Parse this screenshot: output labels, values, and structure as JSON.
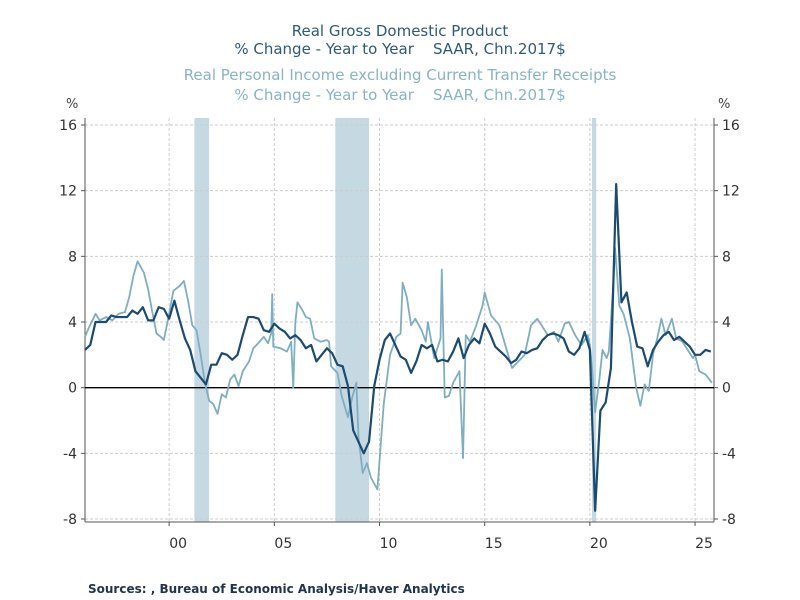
{
  "chart_data": {
    "type": "line",
    "title_lines": [
      {
        "text": "Real Gross Domestic Product",
        "series": 0
      },
      {
        "text": "% Change - Year to Year    SAAR, Chn.2017$",
        "series": 0
      },
      {
        "text": "Real Personal Income excluding Current Transfer Receipts",
        "series": 1
      },
      {
        "text": "% Change - Year to Year    SAAR, Chn.2017$",
        "series": 1
      }
    ],
    "ylabel_left": "%",
    "ylabel_right": "%",
    "ylim": [
      -8,
      16
    ],
    "yticks": [
      -8,
      -4,
      0,
      4,
      8,
      12,
      16
    ],
    "ytick_labels": [
      "-8",
      "-4",
      "0",
      "4",
      "8",
      "12",
      "16"
    ],
    "xlim": [
      1996,
      2025.9
    ],
    "xticks": [
      2000,
      2005,
      2010,
      2015,
      2020,
      2025
    ],
    "xtick_labels": [
      "00",
      "05",
      "10",
      "15",
      "20",
      "25"
    ],
    "grid": true,
    "zero_line": true,
    "recessions": [
      [
        2001.2,
        2001.9
      ],
      [
        2007.9,
        2009.5
      ],
      [
        2020.1,
        2020.3
      ]
    ],
    "colors": {
      "gdp": "#1b4a72",
      "income": "#7eaec2",
      "recession": "#c5d9e3",
      "grid": "#cccccc"
    },
    "series": [
      {
        "name": "Real Gross Domestic Product",
        "color": "#1b4a72",
        "start": 1996,
        "frequency": "quarterly",
        "values": [
          2.3,
          2.6,
          4.0,
          4.0,
          4.0,
          4.4,
          4.3,
          4.3,
          4.3,
          4.7,
          4.5,
          4.9,
          4.1,
          4.1,
          4.9,
          4.8,
          4.2,
          5.3,
          4.1,
          3.0,
          2.3,
          1.0,
          0.6,
          0.2,
          1.4,
          1.4,
          2.1,
          2.0,
          1.7,
          2.0,
          3.2,
          4.3,
          4.3,
          4.2,
          3.5,
          3.4,
          3.9,
          3.6,
          3.4,
          3.0,
          3.2,
          2.9,
          2.4,
          2.6,
          1.6,
          2.0,
          2.4,
          2.1,
          1.4,
          1.3,
          0.1,
          -2.6,
          -3.3,
          -4.0,
          -3.3,
          0.1,
          1.7,
          2.9,
          3.3,
          2.6,
          1.9,
          1.7,
          0.9,
          1.6,
          2.6,
          2.4,
          2.6,
          1.6,
          1.7,
          1.6,
          2.2,
          3.0,
          1.8,
          2.6,
          3.0,
          2.7,
          3.9,
          3.3,
          2.5,
          2.2,
          1.9,
          1.5,
          1.7,
          2.2,
          2.1,
          2.3,
          2.4,
          2.9,
          3.2,
          3.3,
          3.2,
          3.0,
          2.2,
          2.0,
          2.4,
          3.4,
          2.3,
          -7.5,
          -1.4,
          -0.9,
          1.2,
          12.4,
          5.2,
          5.8,
          4.0,
          2.5,
          2.4,
          1.3,
          2.3,
          2.8,
          3.2,
          3.4,
          2.9,
          3.1,
          2.8,
          2.5,
          2.0,
          2.0,
          2.3,
          2.2
        ]
      },
      {
        "name": "Real Personal Income excluding Current Transfer Receipts",
        "color": "#7eaec2",
        "points": [
          [
            1996.0,
            3.1
          ],
          [
            1996.2,
            3.7
          ],
          [
            1996.5,
            4.5
          ],
          [
            1996.7,
            4.1
          ],
          [
            1997.0,
            4.3
          ],
          [
            1997.3,
            4.1
          ],
          [
            1997.6,
            4.5
          ],
          [
            1997.9,
            4.6
          ],
          [
            1998.1,
            5.5
          ],
          [
            1998.3,
            6.8
          ],
          [
            1998.5,
            7.7
          ],
          [
            1998.8,
            7.0
          ],
          [
            1999.0,
            6.0
          ],
          [
            1999.2,
            4.6
          ],
          [
            1999.4,
            3.3
          ],
          [
            1999.6,
            3.1
          ],
          [
            1999.75,
            2.9
          ],
          [
            2000.0,
            4.5
          ],
          [
            2000.2,
            5.9
          ],
          [
            2000.5,
            6.2
          ],
          [
            2000.7,
            6.5
          ],
          [
            2000.9,
            5.3
          ],
          [
            2001.1,
            3.8
          ],
          [
            2001.3,
            3.5
          ],
          [
            2001.5,
            2.0
          ],
          [
            2001.7,
            0.3
          ],
          [
            2001.9,
            -0.8
          ],
          [
            2002.1,
            -1.0
          ],
          [
            2002.3,
            -1.6
          ],
          [
            2002.5,
            -0.4
          ],
          [
            2002.7,
            -0.6
          ],
          [
            2002.9,
            0.5
          ],
          [
            2003.1,
            0.8
          ],
          [
            2003.3,
            0.1
          ],
          [
            2003.5,
            1.0
          ],
          [
            2003.8,
            1.6
          ],
          [
            2004.0,
            2.4
          ],
          [
            2004.3,
            2.8
          ],
          [
            2004.5,
            3.1
          ],
          [
            2004.7,
            2.7
          ],
          [
            2004.85,
            3.3
          ],
          [
            2004.9,
            5.7
          ],
          [
            2004.95,
            2.5
          ],
          [
            2005.3,
            2.4
          ],
          [
            2005.6,
            2.2
          ],
          [
            2005.8,
            2.8
          ],
          [
            2005.9,
            0.0
          ],
          [
            2006.0,
            4.0
          ],
          [
            2006.1,
            5.2
          ],
          [
            2006.3,
            4.8
          ],
          [
            2006.5,
            4.3
          ],
          [
            2006.7,
            4.2
          ],
          [
            2006.9,
            3.0
          ],
          [
            2007.2,
            2.8
          ],
          [
            2007.5,
            2.9
          ],
          [
            2007.6,
            2.8
          ],
          [
            2007.7,
            1.3
          ],
          [
            2008.0,
            0.9
          ],
          [
            2008.2,
            -0.5
          ],
          [
            2008.5,
            -1.8
          ],
          [
            2008.7,
            -0.6
          ],
          [
            2008.9,
            0.3
          ],
          [
            2009.0,
            -3.0
          ],
          [
            2009.2,
            -5.2
          ],
          [
            2009.4,
            -4.6
          ],
          [
            2009.6,
            -5.5
          ],
          [
            2009.9,
            -6.2
          ],
          [
            2010.2,
            -1.0
          ],
          [
            2010.5,
            2.0
          ],
          [
            2010.8,
            3.1
          ],
          [
            2011.0,
            3.3
          ],
          [
            2011.1,
            6.4
          ],
          [
            2011.3,
            5.5
          ],
          [
            2011.5,
            3.8
          ],
          [
            2011.7,
            4.2
          ],
          [
            2012.0,
            3.5
          ],
          [
            2012.2,
            2.8
          ],
          [
            2012.3,
            4.0
          ],
          [
            2012.6,
            1.8
          ],
          [
            2012.9,
            3.0
          ],
          [
            2012.96,
            7.2
          ],
          [
            2013.1,
            -0.6
          ],
          [
            2013.3,
            -0.5
          ],
          [
            2013.5,
            0.3
          ],
          [
            2013.8,
            1.0
          ],
          [
            2013.97,
            -4.3
          ],
          [
            2014.1,
            3.2
          ],
          [
            2014.3,
            2.8
          ],
          [
            2014.6,
            3.8
          ],
          [
            2014.9,
            5.0
          ],
          [
            2015.0,
            5.8
          ],
          [
            2015.3,
            4.4
          ],
          [
            2015.7,
            3.8
          ],
          [
            2016.0,
            2.5
          ],
          [
            2016.3,
            1.2
          ],
          [
            2016.6,
            1.6
          ],
          [
            2016.9,
            2.0
          ],
          [
            2017.2,
            3.8
          ],
          [
            2017.5,
            4.2
          ],
          [
            2017.7,
            3.8
          ],
          [
            2018.0,
            3.2
          ],
          [
            2018.3,
            3.4
          ],
          [
            2018.5,
            2.8
          ],
          [
            2018.8,
            3.9
          ],
          [
            2019.0,
            4.0
          ],
          [
            2019.3,
            3.2
          ],
          [
            2019.6,
            2.6
          ],
          [
            2019.9,
            3.2
          ],
          [
            2020.0,
            2.6
          ],
          [
            2020.1,
            1.2
          ],
          [
            2020.25,
            -1.5
          ],
          [
            2020.45,
            0.5
          ],
          [
            2020.6,
            2.3
          ],
          [
            2020.8,
            1.8
          ],
          [
            2020.9,
            2.2
          ],
          [
            2021.1,
            6.0
          ],
          [
            2021.2,
            8.5
          ],
          [
            2021.4,
            5.0
          ],
          [
            2021.6,
            4.5
          ],
          [
            2021.9,
            3.0
          ],
          [
            2022.2,
            0.0
          ],
          [
            2022.4,
            -1.1
          ],
          [
            2022.6,
            0.2
          ],
          [
            2022.8,
            -0.2
          ],
          [
            2023.0,
            2.0
          ],
          [
            2023.2,
            3.0
          ],
          [
            2023.4,
            4.2
          ],
          [
            2023.6,
            3.2
          ],
          [
            2023.9,
            4.2
          ],
          [
            2024.1,
            3.0
          ],
          [
            2024.4,
            2.8
          ],
          [
            2024.7,
            2.2
          ],
          [
            2024.9,
            1.8
          ],
          [
            2025.0,
            2.0
          ],
          [
            2025.2,
            1.0
          ],
          [
            2025.5,
            0.8
          ],
          [
            2025.8,
            0.3
          ]
        ]
      }
    ]
  },
  "footer": {
    "sources": "Sources:  , Bureau of Economic Analysis/Haver Analytics"
  }
}
